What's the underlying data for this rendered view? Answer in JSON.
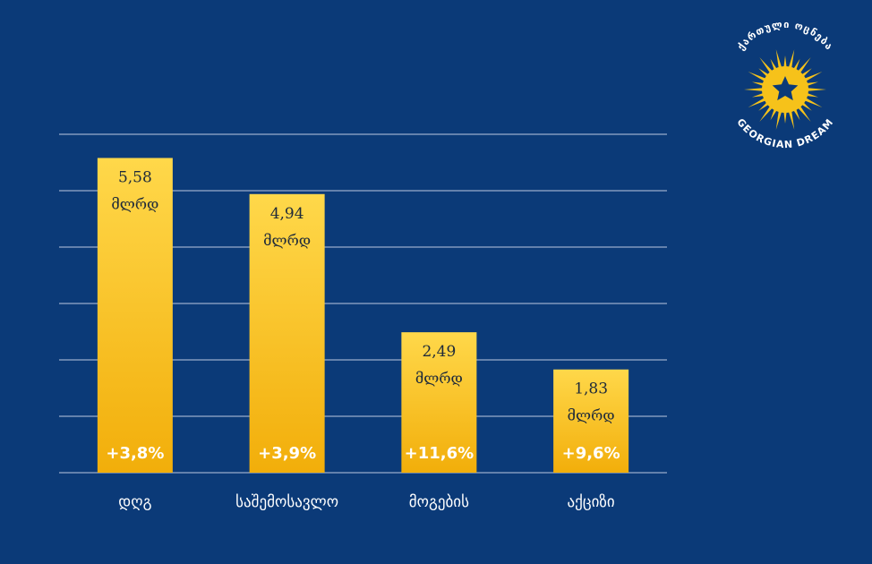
{
  "logo": {
    "top_text": "ქართული ოცნება",
    "bottom_text": "GEORGIAN DREAM",
    "colors": {
      "sun": "#f6c21a",
      "star": "#0b3a78",
      "text": "#ffffff"
    }
  },
  "colors": {
    "background": "#0b3a78",
    "bar_top": "#ffd84a",
    "bar_bottom": "#f2ae0a",
    "gridline": "#c9d3e6"
  },
  "chart_data": {
    "type": "bar",
    "title": "",
    "xlabel": "",
    "ylabel": "",
    "ylim": [
      0,
      6
    ],
    "grid": true,
    "categories": [
      "დღგ",
      "საშემოსავლო",
      "მოგების",
      "აქციზი"
    ],
    "values": [
      5.58,
      4.94,
      2.49,
      1.83
    ],
    "value_labels": [
      "5,58",
      "4,94",
      "2,49",
      "1,83"
    ],
    "unit_label": "მლრდ",
    "growth_labels": [
      "+3,8%",
      "+3,9%",
      "+11,6%",
      "+9,6%"
    ]
  }
}
